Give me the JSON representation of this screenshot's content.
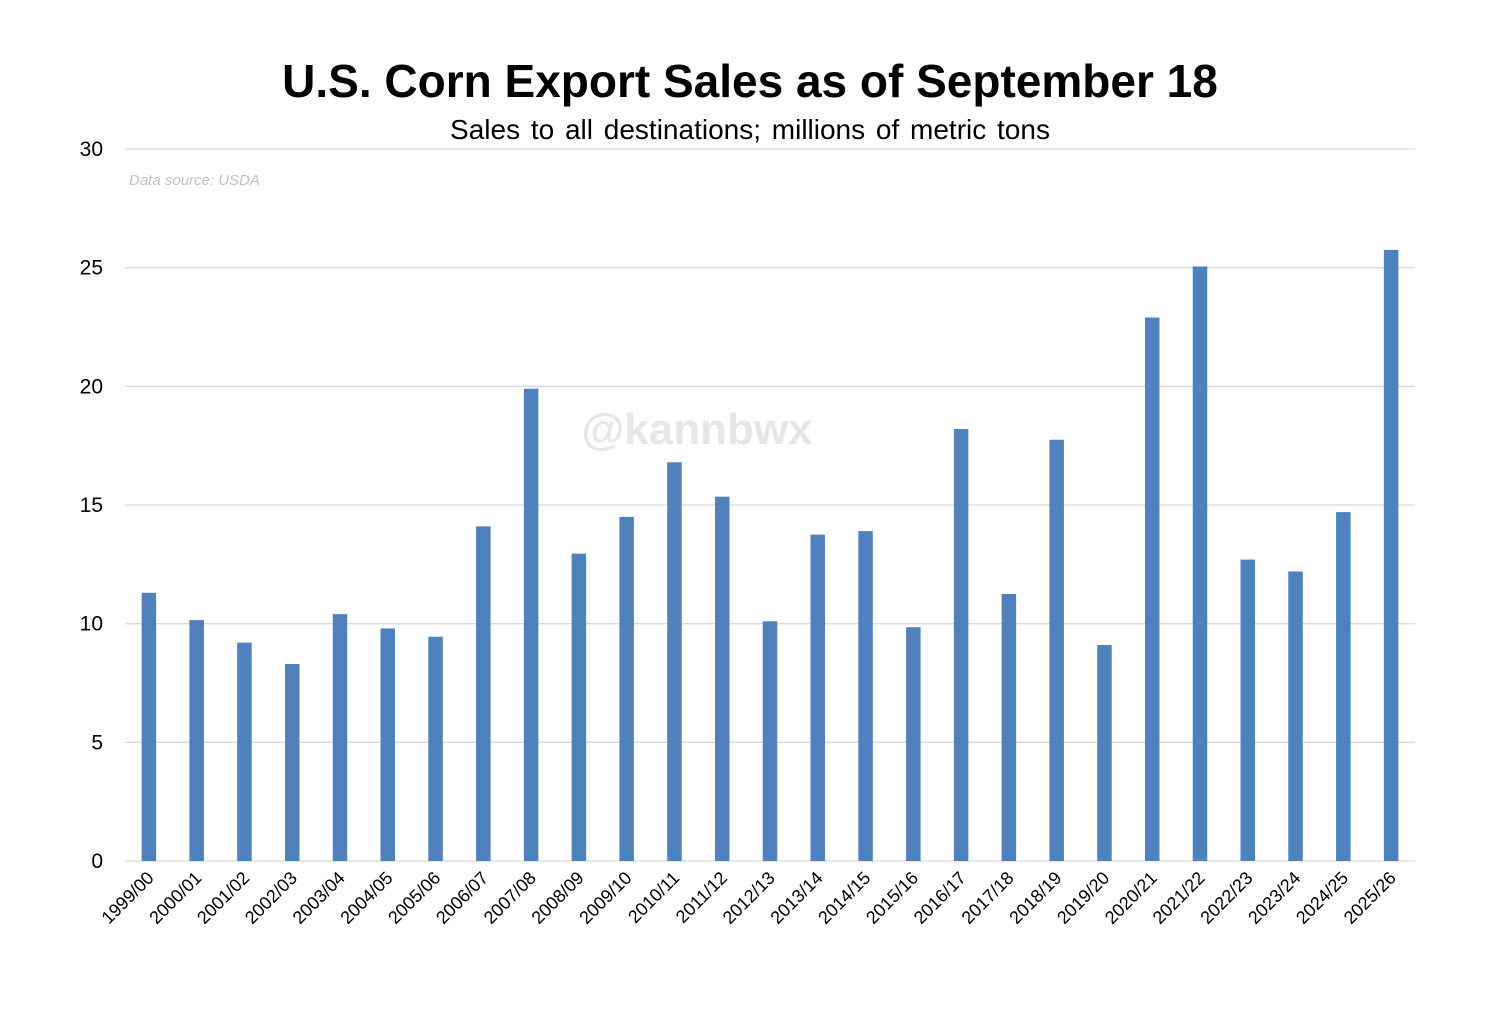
{
  "chart_data": {
    "type": "bar",
    "title": "U.S. Corn Export Sales as of September 18",
    "subtitle": "Sales to all destinations; millions of metric tons",
    "source_note": "Data source: USDA",
    "watermark": "@kannbwx",
    "xlabel": "",
    "ylabel": "",
    "ylim": [
      0,
      30
    ],
    "yticks": [
      "0",
      "5",
      "10",
      "15",
      "20",
      "25",
      "30"
    ],
    "grid": true,
    "bar_color": "#4f81bd",
    "categories": [
      "1999/00",
      "2000/01",
      "2001/02",
      "2002/03",
      "2003/04",
      "2004/05",
      "2005/06",
      "2006/07",
      "2007/08",
      "2008/09",
      "2009/10",
      "2010/11",
      "2011/12",
      "2012/13",
      "2013/14",
      "2014/15",
      "2015/16",
      "2016/17",
      "2017/18",
      "2018/19",
      "2019/20",
      "2020/21",
      "2021/22",
      "2022/23",
      "2023/24",
      "2024/25",
      "2025/26"
    ],
    "values": [
      11.3,
      10.15,
      9.2,
      8.3,
      10.4,
      9.8,
      9.45,
      14.1,
      19.9,
      12.95,
      14.5,
      16.8,
      15.35,
      10.1,
      13.75,
      13.9,
      9.85,
      18.2,
      11.25,
      17.75,
      9.1,
      22.9,
      25.05,
      12.7,
      12.2,
      14.7,
      25.75
    ]
  }
}
